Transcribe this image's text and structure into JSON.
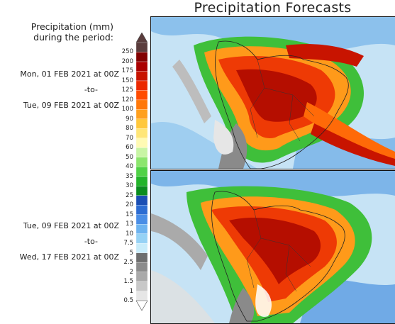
{
  "title": "Precipitation Forecasts",
  "legend_label": {
    "line1": "Precipitation (mm)",
    "line2": "during the period:"
  },
  "periods": [
    {
      "start": "Mon, 01 FEB 2021 at 00Z",
      "to": "-to-",
      "end": "Tue, 09 FEB 2021 at 00Z"
    },
    {
      "start": "Tue, 09 FEB 2021 at 00Z",
      "to": "-to-",
      "end": "Wed, 17 FEB 2021 at 00Z"
    }
  ],
  "scale": {
    "levels": [
      "0.5",
      "1",
      "1.5",
      "2",
      "2.5",
      "5",
      "7.5",
      "10",
      "13",
      "15",
      "20",
      "25",
      "30",
      "35",
      "40",
      "50",
      "60",
      "70",
      "80",
      "90",
      "100",
      "120",
      "125",
      "150",
      "175",
      "200",
      "250"
    ],
    "colors": [
      "#e6e6e6",
      "#c8c8c8",
      "#aaaaaa",
      "#8c8c8c",
      "#6e6e6e",
      "#c8ecfa",
      "#96d2f5",
      "#6eb4f0",
      "#4a8ee6",
      "#2c6cd2",
      "#1a4eb4",
      "#0a8c1e",
      "#23b42a",
      "#50d246",
      "#8ce66e",
      "#c8f5a5",
      "#fffab4",
      "#ffe678",
      "#ffc83c",
      "#ffa01e",
      "#ff780a",
      "#ff4b00",
      "#eb2800",
      "#c81400",
      "#aa0000",
      "#820000",
      "#5a3c3c"
    ]
  }
}
